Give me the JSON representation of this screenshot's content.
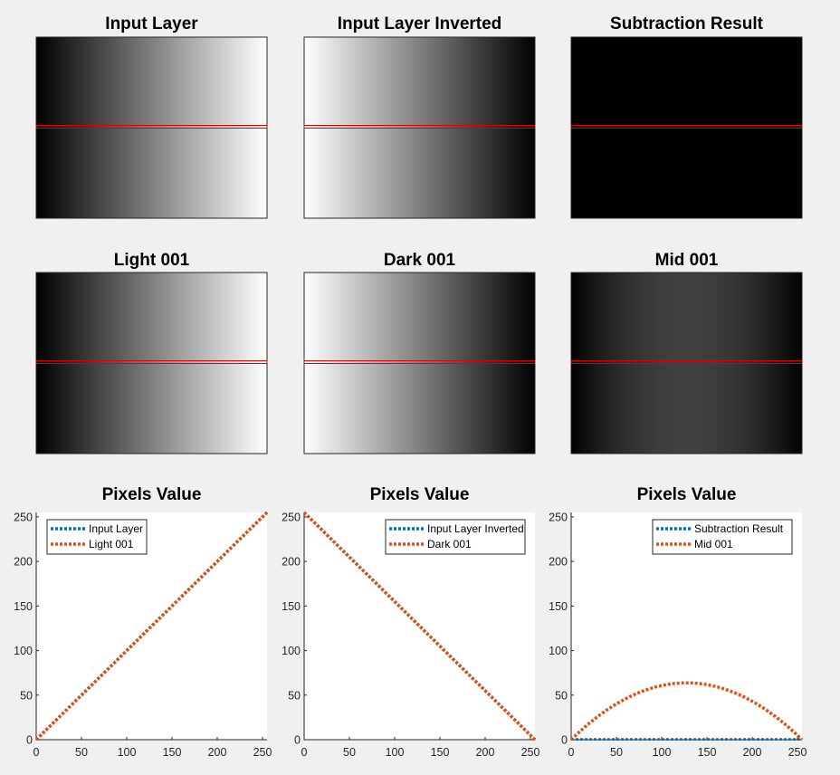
{
  "image_panels": [
    {
      "title": "Input Layer",
      "gradient": "ramp"
    },
    {
      "title": "Input Layer Inverted",
      "gradient": "inverted-ramp"
    },
    {
      "title": "Subtraction Result",
      "gradient": "black"
    },
    {
      "title": "Light 001",
      "gradient": "ramp"
    },
    {
      "title": "Dark 001",
      "gradient": "inverted-ramp"
    },
    {
      "title": "Mid 001",
      "gradient": "parabola"
    }
  ],
  "marker_line_color": "#e00000",
  "colors": {
    "series_1": "#0072BD",
    "series_2": "#D95319"
  },
  "chart_data": [
    {
      "type": "line",
      "title": "Pixels Value",
      "xlim": [
        0,
        255
      ],
      "ylim": [
        0,
        255
      ],
      "xticks": [
        0,
        50,
        100,
        150,
        200,
        250
      ],
      "yticks": [
        0,
        50,
        100,
        150,
        200,
        250
      ],
      "legend_position": "top-left",
      "series": [
        {
          "name": "Input Layer",
          "style": "dotted",
          "formula": "y = x",
          "x": [
            0,
            255
          ],
          "y": [
            0,
            255
          ]
        },
        {
          "name": "Light 001",
          "style": "dotted",
          "formula": "y = x",
          "x": [
            0,
            255
          ],
          "y": [
            0,
            255
          ]
        }
      ]
    },
    {
      "type": "line",
      "title": "Pixels Value",
      "xlim": [
        0,
        255
      ],
      "ylim": [
        0,
        255
      ],
      "xticks": [
        0,
        50,
        100,
        150,
        200,
        250
      ],
      "yticks": [
        0,
        50,
        100,
        150,
        200,
        250
      ],
      "legend_position": "top-right",
      "series": [
        {
          "name": "Input Layer Inverted",
          "style": "dotted",
          "formula": "y = 255 - x",
          "x": [
            0,
            255
          ],
          "y": [
            255,
            0
          ]
        },
        {
          "name": "Dark 001",
          "style": "dotted",
          "formula": "y = 255 - x",
          "x": [
            0,
            255
          ],
          "y": [
            255,
            0
          ]
        }
      ]
    },
    {
      "type": "line",
      "title": "Pixels Value",
      "xlim": [
        0,
        255
      ],
      "ylim": [
        0,
        255
      ],
      "xticks": [
        0,
        50,
        100,
        150,
        200,
        250
      ],
      "yticks": [
        0,
        50,
        100,
        150,
        200,
        250
      ],
      "legend_position": "top-right",
      "series": [
        {
          "name": "Subtraction Result",
          "style": "dotted",
          "formula": "y = 0",
          "x": [
            0,
            255
          ],
          "y": [
            0,
            0
          ]
        },
        {
          "name": "Mid 001",
          "style": "dotted",
          "formula": "y = x * (255 - x) / 255",
          "x": [
            0,
            32,
            64,
            96,
            128,
            160,
            192,
            224,
            255
          ],
          "y": [
            0,
            28,
            48,
            60,
            64,
            60,
            47,
            27,
            0
          ]
        }
      ]
    }
  ]
}
